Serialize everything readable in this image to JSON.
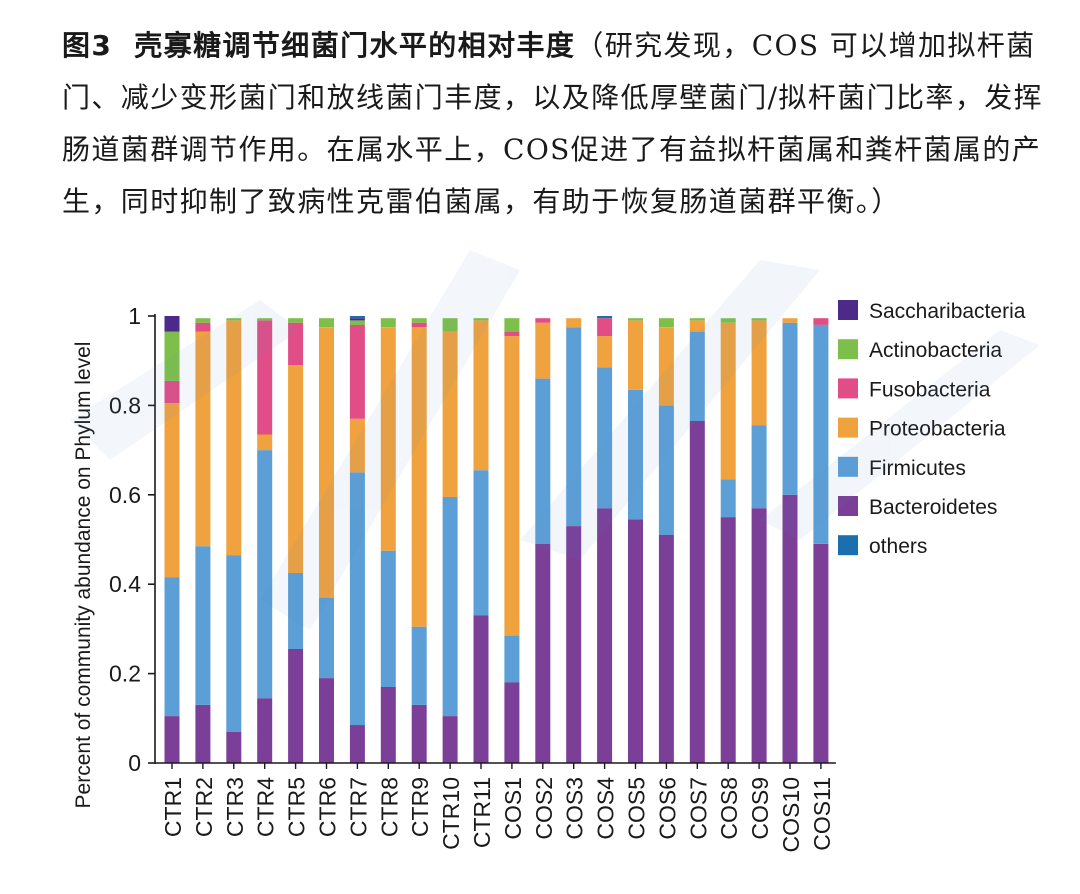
{
  "caption": {
    "label": "图3",
    "title": "壳寡糖调节细菌门水平的相对丰度",
    "body": "（研究发现，COS 可以增加拟杆菌门、减少变形菌门和放线菌门丰度，以及降低厚壁菌门/拟杆菌门比率，发挥肠道菌群调节作用。在属水平上，COS促进了有益拟杆菌属和粪杆菌属的产生，同时抑制了致病性克雷伯菌属，有助于恢复肠道菌群平衡。）"
  },
  "colors": {
    "Bacteroidetes": "#7b3f98",
    "Firmicutes": "#5b9fd6",
    "Proteobacteria": "#f0a23e",
    "Fusobacteria": "#e14d86",
    "Actinobacteria": "#7dbf4a",
    "Saccharibacteria": "#4b2a8a",
    "others": "#1a6fae"
  },
  "chart_data": {
    "type": "bar",
    "stacked": true,
    "ylabel": "Percent of community abundance on Phylum level",
    "xlabel": "",
    "ylim": [
      0,
      1
    ],
    "yticks": [
      "0",
      "0.2",
      "0.4",
      "0.6",
      "0.8",
      "1"
    ],
    "legend_position": "right",
    "legend_order": [
      "Saccharibacteria",
      "Actinobacteria",
      "Fusobacteria",
      "Proteobacteria",
      "Firmicutes",
      "Bacteroidetes",
      "others"
    ],
    "categories": [
      "CTR1",
      "CTR2",
      "CTR3",
      "CTR4",
      "CTR5",
      "CTR6",
      "CTR7",
      "CTR8",
      "CTR9",
      "CTR10",
      "CTR11",
      "COS1",
      "COS2",
      "COS3",
      "COS4",
      "COS5",
      "COS6",
      "COS7",
      "COS8",
      "COS9",
      "COS10",
      "COS11"
    ],
    "series": [
      {
        "name": "Bacteroidetes",
        "values": [
          0.105,
          0.13,
          0.07,
          0.145,
          0.255,
          0.19,
          0.085,
          0.17,
          0.13,
          0.105,
          0.33,
          0.18,
          0.49,
          0.53,
          0.57,
          0.545,
          0.51,
          0.765,
          0.55,
          0.57,
          0.6,
          0.49
        ]
      },
      {
        "name": "Firmicutes",
        "values": [
          0.31,
          0.355,
          0.395,
          0.555,
          0.17,
          0.18,
          0.565,
          0.305,
          0.175,
          0.49,
          0.325,
          0.105,
          0.37,
          0.445,
          0.315,
          0.29,
          0.29,
          0.2,
          0.085,
          0.185,
          0.385,
          0.49
        ]
      },
      {
        "name": "Proteobacteria",
        "values": [
          0.39,
          0.48,
          0.525,
          0.035,
          0.465,
          0.605,
          0.12,
          0.5,
          0.67,
          0.37,
          0.335,
          0.67,
          0.125,
          0.02,
          0.07,
          0.155,
          0.175,
          0.025,
          0.35,
          0.235,
          0.01,
          0.0
        ]
      },
      {
        "name": "Fusobacteria",
        "values": [
          0.05,
          0.02,
          0.0,
          0.255,
          0.095,
          0.0,
          0.21,
          0.0,
          0.01,
          0.0,
          0.0,
          0.01,
          0.01,
          0.0,
          0.04,
          0.0,
          0.0,
          0.0,
          0.0,
          0.0,
          0.0,
          0.015
        ]
      },
      {
        "name": "Actinobacteria",
        "values": [
          0.11,
          0.01,
          0.005,
          0.005,
          0.01,
          0.02,
          0.01,
          0.02,
          0.01,
          0.03,
          0.005,
          0.03,
          0.0,
          0.0,
          0.0,
          0.005,
          0.02,
          0.005,
          0.01,
          0.005,
          0.0,
          0.0
        ]
      },
      {
        "name": "Saccharibacteria",
        "values": [
          0.035,
          0.0,
          0.0,
          0.0,
          0.0,
          0.0,
          0.005,
          0.0,
          0.0,
          0.0,
          0.0,
          0.0,
          0.0,
          0.0,
          0.0,
          0.0,
          0.0,
          0.0,
          0.0,
          0.0,
          0.0,
          0.0
        ]
      },
      {
        "name": "others",
        "values": [
          0.0,
          0.0,
          0.0,
          0.0,
          0.0,
          0.0,
          0.005,
          0.0,
          0.0,
          0.0,
          0.0,
          0.0,
          0.0,
          0.0,
          0.005,
          0.0,
          0.0,
          0.0,
          0.0,
          0.0,
          0.0,
          0.0
        ]
      }
    ]
  }
}
